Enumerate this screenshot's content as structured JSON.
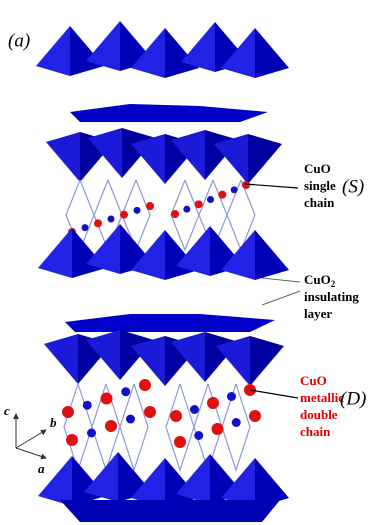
{
  "panel_label": "(a)",
  "annotations": {
    "single": {
      "lines": [
        "CuO",
        "single",
        "chain"
      ],
      "symbol": "(S)"
    },
    "layer": {
      "formula": "CuO",
      "subscript": "2",
      "lines": [
        "insulating",
        "layer"
      ]
    },
    "double": {
      "lines": [
        "CuO",
        "metallic",
        "double",
        "chain"
      ],
      "symbol": "(D)"
    }
  },
  "axes": {
    "c": "c",
    "b": "b",
    "a": "a"
  }
}
